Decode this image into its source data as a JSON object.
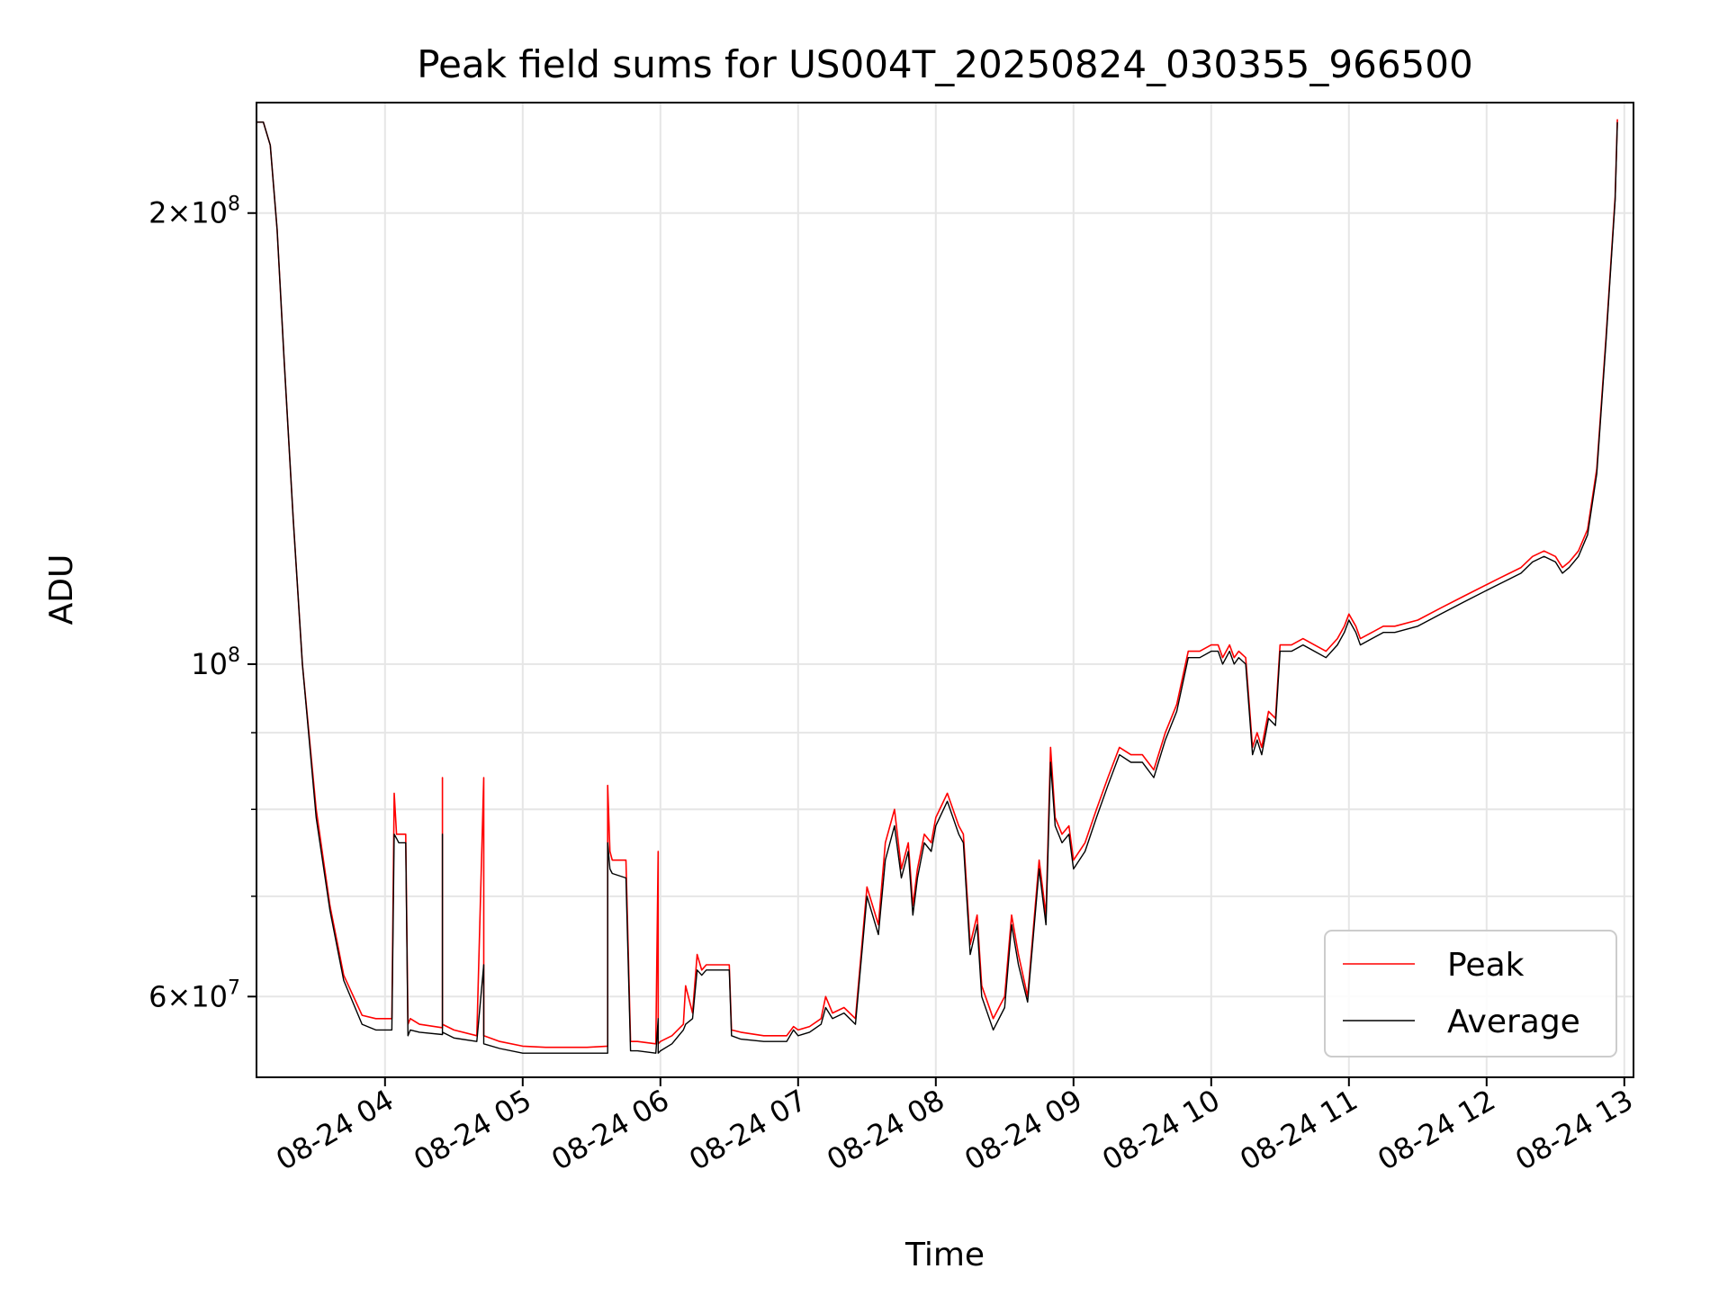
{
  "chart_data": {
    "type": "line",
    "title": "Peak field sums for US004T_20250824_030355_966500",
    "xlabel": "Time",
    "ylabel": "ADU",
    "yscale": "log",
    "xlim": [
      "2025-08-24 03:04",
      "2025-08-24 13:04"
    ],
    "ylim": [
      53000000,
      237000000
    ],
    "x_tick_labels": [
      "08-24 04",
      "08-24 05",
      "08-24 06",
      "08-24 07",
      "08-24 08",
      "08-24 09",
      "08-24 10",
      "08-24 11",
      "08-24 12",
      "08-24 13"
    ],
    "y_tick_labels": [
      {
        "value": 60000000,
        "base": "6",
        "exp": "7"
      },
      {
        "value": 100000000,
        "base": "",
        "exp": "8"
      },
      {
        "value": 200000000,
        "base": "2",
        "exp": "8"
      }
    ],
    "grid": true,
    "legend_position": "lower-right",
    "series": [
      {
        "name": "Peak",
        "color": "#ff0000",
        "x": [
          "03:04",
          "03:07",
          "03:10",
          "03:13",
          "03:16",
          "03:20",
          "03:24",
          "03:30",
          "03:36",
          "03:42",
          "03:50",
          "03:56",
          "04:03",
          "04:04",
          "04:05",
          "04:06",
          "04:09",
          "04:10",
          "04:11",
          "04:15",
          "04:25",
          "04:25",
          "04:25",
          "04:30",
          "04:40",
          "04:43",
          "04:43",
          "04:43",
          "04:50",
          "05:00",
          "05:10",
          "05:20",
          "05:28",
          "05:37",
          "05:37",
          "05:38",
          "05:39",
          "05:45",
          "05:47",
          "05:50",
          "05:58",
          "05:59",
          "05:59",
          "06:00",
          "06:05",
          "06:10",
          "06:11",
          "06:14",
          "06:16",
          "06:18",
          "06:20",
          "06:30",
          "06:31",
          "06:35",
          "06:45",
          "06:55",
          "06:58",
          "07:00",
          "07:05",
          "07:10",
          "07:12",
          "07:15",
          "07:20",
          "07:25",
          "07:30",
          "07:35",
          "07:38",
          "07:42",
          "07:45",
          "07:48",
          "07:50",
          "07:52",
          "07:55",
          "07:58",
          "08:00",
          "08:05",
          "08:10",
          "08:12",
          "08:15",
          "08:18",
          "08:20",
          "08:25",
          "08:30",
          "08:33",
          "08:36",
          "08:40",
          "08:45",
          "08:48",
          "08:50",
          "08:52",
          "08:55",
          "08:58",
          "09:00",
          "09:05",
          "09:10",
          "09:15",
          "09:20",
          "09:25",
          "09:30",
          "09:35",
          "09:40",
          "09:45",
          "09:50",
          "09:55",
          "10:00",
          "10:03",
          "10:05",
          "10:08",
          "10:10",
          "10:12",
          "10:15",
          "10:18",
          "10:20",
          "10:22",
          "10:25",
          "10:28",
          "10:30",
          "10:35",
          "10:40",
          "10:45",
          "10:50",
          "10:55",
          "10:58",
          "11:00",
          "11:03",
          "11:05",
          "11:10",
          "11:15",
          "11:20",
          "11:30",
          "11:40",
          "11:50",
          "12:00",
          "12:05",
          "12:10",
          "12:15",
          "12:20",
          "12:25",
          "12:30",
          "12:33",
          "12:36",
          "12:40",
          "12:44",
          "12:48",
          "12:52",
          "12:56",
          "12:57"
        ],
        "values": [
          230000000,
          230000000,
          222000000,
          195000000,
          160000000,
          125000000,
          100000000,
          80000000,
          69000000,
          62000000,
          58300000,
          58000000,
          58000000,
          82000000,
          77000000,
          77000000,
          77000000,
          57500000,
          58000000,
          57500000,
          57200000,
          84000000,
          57500000,
          57000000,
          56500000,
          84000000,
          56500000,
          56500000,
          56000000,
          55600000,
          55500000,
          55500000,
          55500000,
          55600000,
          83000000,
          75000000,
          74000000,
          74000000,
          56000000,
          56000000,
          55800000,
          75000000,
          55800000,
          56000000,
          56500000,
          57500000,
          61000000,
          58500000,
          64000000,
          62500000,
          63000000,
          63000000,
          57000000,
          56800000,
          56500000,
          56500000,
          57300000,
          57000000,
          57300000,
          58000000,
          60000000,
          58500000,
          59000000,
          58000000,
          71000000,
          67000000,
          76000000,
          80000000,
          73000000,
          76000000,
          69000000,
          73000000,
          77000000,
          76000000,
          79000000,
          82000000,
          78000000,
          77000000,
          65000000,
          68000000,
          61000000,
          58000000,
          60000000,
          68000000,
          64000000,
          60000000,
          74000000,
          68000000,
          88000000,
          79000000,
          77000000,
          78000000,
          74000000,
          76000000,
          80000000,
          84000000,
          88000000,
          87000000,
          87000000,
          85000000,
          90000000,
          94000000,
          102000000,
          102000000,
          103000000,
          103000000,
          101000000,
          103000000,
          101000000,
          102000000,
          101000000,
          88000000,
          90000000,
          88000000,
          93000000,
          92000000,
          103000000,
          103000000,
          104000000,
          103000000,
          102000000,
          104000000,
          106000000,
          108000000,
          106000000,
          104000000,
          105000000,
          106000000,
          106000000,
          107000000,
          109000000,
          111000000,
          113000000,
          114000000,
          115000000,
          116000000,
          118000000,
          119000000,
          118000000,
          116000000,
          117000000,
          119000000,
          123000000,
          135000000,
          165000000,
          205000000,
          231000000
        ]
      },
      {
        "name": "Average",
        "color": "#000000",
        "x": [
          "03:04",
          "03:07",
          "03:10",
          "03:13",
          "03:16",
          "03:20",
          "03:24",
          "03:30",
          "03:36",
          "03:42",
          "03:50",
          "03:56",
          "04:03",
          "04:04",
          "04:05",
          "04:06",
          "04:09",
          "04:10",
          "04:11",
          "04:15",
          "04:25",
          "04:25",
          "04:25",
          "04:30",
          "04:40",
          "04:43",
          "04:43",
          "04:43",
          "04:50",
          "05:00",
          "05:10",
          "05:20",
          "05:28",
          "05:37",
          "05:37",
          "05:38",
          "05:39",
          "05:45",
          "05:47",
          "05:50",
          "05:58",
          "05:59",
          "05:59",
          "06:00",
          "06:05",
          "06:10",
          "06:11",
          "06:14",
          "06:16",
          "06:18",
          "06:20",
          "06:30",
          "06:31",
          "06:35",
          "06:45",
          "06:55",
          "06:58",
          "07:00",
          "07:05",
          "07:10",
          "07:12",
          "07:15",
          "07:20",
          "07:25",
          "07:30",
          "07:35",
          "07:38",
          "07:42",
          "07:45",
          "07:48",
          "07:50",
          "07:52",
          "07:55",
          "07:58",
          "08:00",
          "08:05",
          "08:10",
          "08:12",
          "08:15",
          "08:18",
          "08:20",
          "08:25",
          "08:30",
          "08:33",
          "08:36",
          "08:40",
          "08:45",
          "08:48",
          "08:50",
          "08:52",
          "08:55",
          "08:58",
          "09:00",
          "09:05",
          "09:10",
          "09:15",
          "09:20",
          "09:25",
          "09:30",
          "09:35",
          "09:40",
          "09:45",
          "09:50",
          "09:55",
          "10:00",
          "10:03",
          "10:05",
          "10:08",
          "10:10",
          "10:12",
          "10:15",
          "10:18",
          "10:20",
          "10:22",
          "10:25",
          "10:28",
          "10:30",
          "10:35",
          "10:40",
          "10:45",
          "10:50",
          "10:55",
          "10:58",
          "11:00",
          "11:03",
          "11:05",
          "11:10",
          "11:15",
          "11:20",
          "11:30",
          "11:40",
          "11:50",
          "12:00",
          "12:05",
          "12:10",
          "12:15",
          "12:20",
          "12:25",
          "12:30",
          "12:33",
          "12:36",
          "12:40",
          "12:44",
          "12:48",
          "12:52",
          "12:56",
          "12:57"
        ],
        "values": [
          230000000,
          230000000,
          222000000,
          195000000,
          160000000,
          125000000,
          100000000,
          79000000,
          68500000,
          61500000,
          57500000,
          57000000,
          57000000,
          77000000,
          76500000,
          76000000,
          76000000,
          56500000,
          57000000,
          56800000,
          56600000,
          77000000,
          56800000,
          56300000,
          56000000,
          63000000,
          56000000,
          55800000,
          55400000,
          55000000,
          55000000,
          55000000,
          55000000,
          55000000,
          76000000,
          73000000,
          72500000,
          72000000,
          55200000,
          55200000,
          55000000,
          58000000,
          55000000,
          55200000,
          55800000,
          57000000,
          57500000,
          58000000,
          62500000,
          62000000,
          62500000,
          62500000,
          56500000,
          56200000,
          56000000,
          56000000,
          57000000,
          56500000,
          56800000,
          57500000,
          59000000,
          58000000,
          58500000,
          57500000,
          70000000,
          66000000,
          74000000,
          78000000,
          72000000,
          75000000,
          68000000,
          72000000,
          76000000,
          75000000,
          78000000,
          81000000,
          77000000,
          76000000,
          64000000,
          67000000,
          60000000,
          57000000,
          59000000,
          67000000,
          63000000,
          59500000,
          73000000,
          67000000,
          86000000,
          78000000,
          76000000,
          77000000,
          73000000,
          75000000,
          79000000,
          83000000,
          87000000,
          86000000,
          86000000,
          84000000,
          89000000,
          93000000,
          101000000,
          101000000,
          102000000,
          102000000,
          100000000,
          102000000,
          100000000,
          101000000,
          100000000,
          87000000,
          89000000,
          87000000,
          92000000,
          91000000,
          102000000,
          102000000,
          103000000,
          102000000,
          101000000,
          103000000,
          105000000,
          107000000,
          105000000,
          103000000,
          104000000,
          105000000,
          105000000,
          106000000,
          108000000,
          110000000,
          112000000,
          113000000,
          114000000,
          115000000,
          117000000,
          118000000,
          117000000,
          115000000,
          116000000,
          118000000,
          122000000,
          134000000,
          164000000,
          204000000,
          230000000
        ]
      }
    ]
  }
}
